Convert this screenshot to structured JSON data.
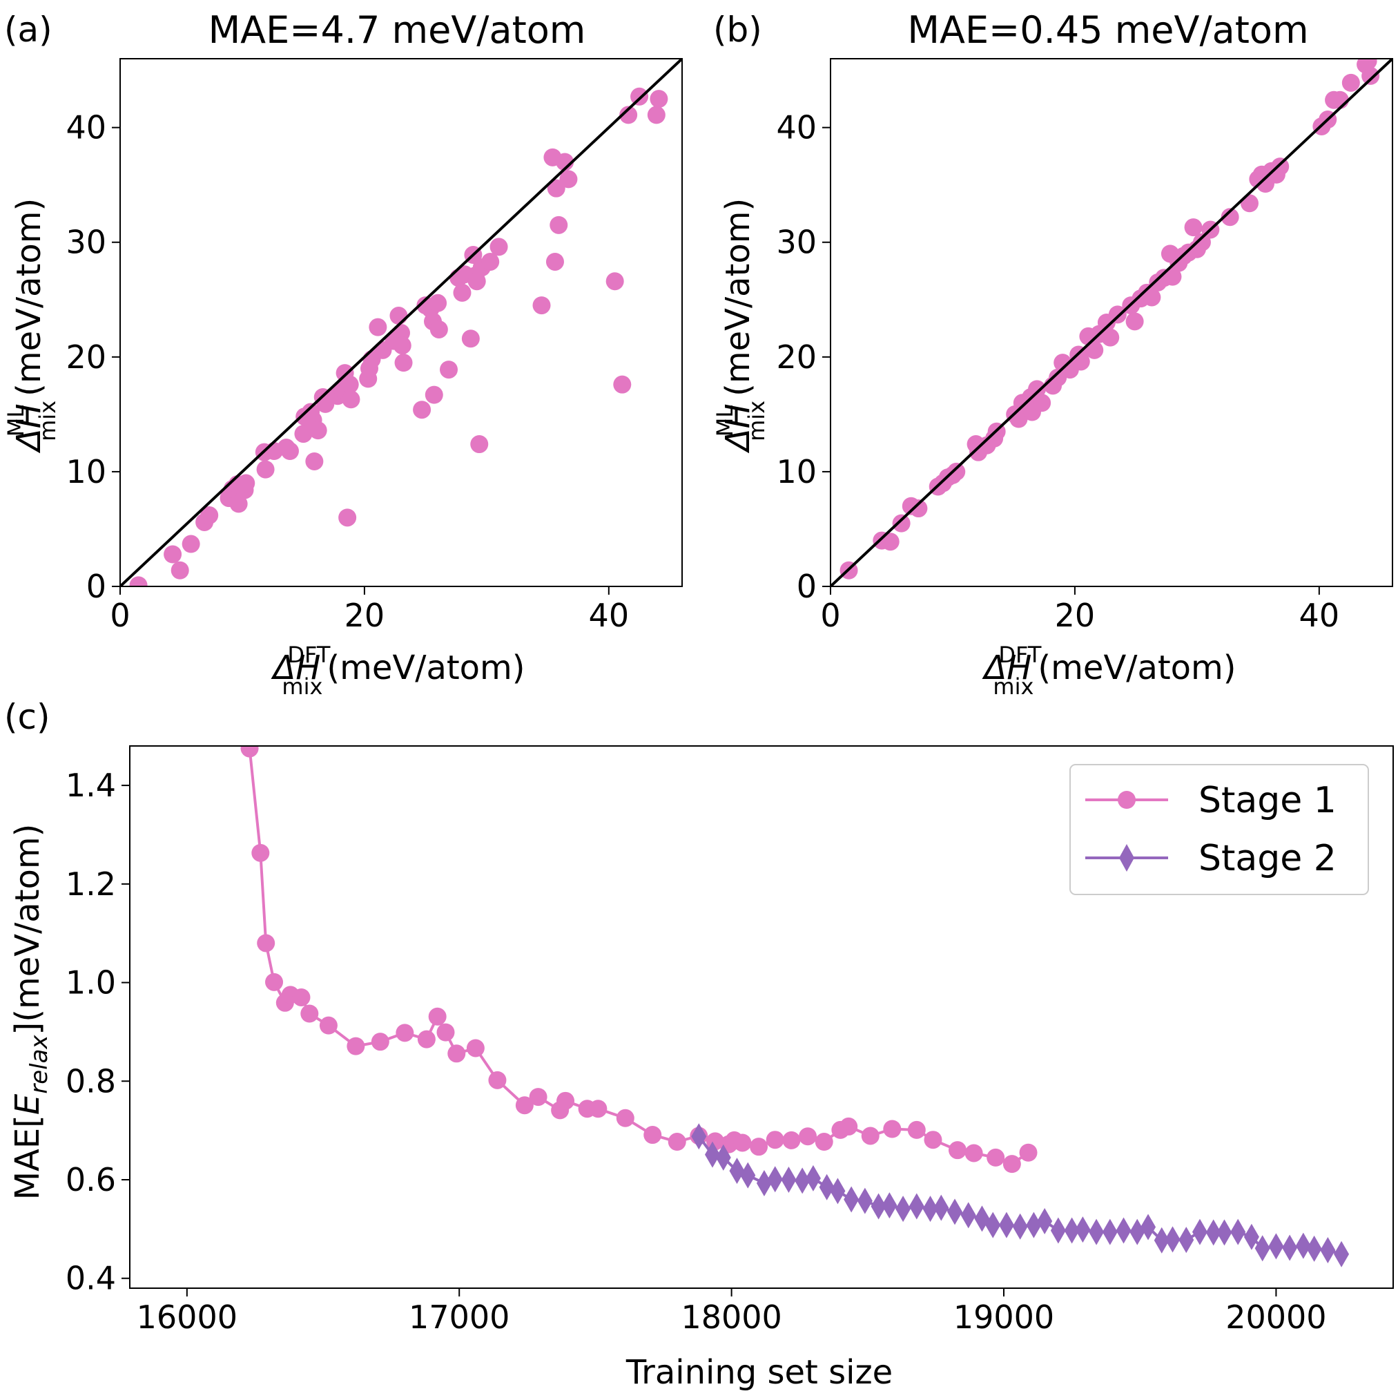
{
  "colors": {
    "stage1": "#e377c2",
    "stage2": "#9467bd",
    "scatter": "#e377c2",
    "diagonal": "#000000",
    "axes": "#000000"
  },
  "chart_data": [
    {
      "panel": "(a)",
      "type": "scatter",
      "title": "MAE=4.7 meV/atom",
      "xlabel": {
        "base": "ΔH",
        "sup": "DFT",
        "sub": "mix",
        "unit": "(meV/atom)"
      },
      "ylabel": {
        "base": "ΔH",
        "sup": "ML",
        "sub": "mix",
        "unit": "(meV/atom)"
      },
      "xlim": [
        0,
        46
      ],
      "ylim": [
        0,
        46
      ],
      "xticks": [
        0,
        20,
        40
      ],
      "yticks": [
        0,
        10,
        20,
        30,
        40
      ],
      "reference_line": "y = x",
      "points": [
        [
          1.5,
          0.1
        ],
        [
          4.3,
          2.8
        ],
        [
          4.9,
          1.4
        ],
        [
          5.8,
          3.7
        ],
        [
          6.9,
          5.6
        ],
        [
          7.3,
          6.2
        ],
        [
          8.9,
          7.7
        ],
        [
          9.2,
          8.5
        ],
        [
          9.6,
          8.9
        ],
        [
          9.7,
          7.2
        ],
        [
          10.2,
          8.4
        ],
        [
          10.3,
          9.0
        ],
        [
          11.8,
          11.7
        ],
        [
          11.9,
          10.2
        ],
        [
          12.6,
          11.8
        ],
        [
          13.6,
          12.1
        ],
        [
          13.9,
          11.8
        ],
        [
          15.0,
          13.3
        ],
        [
          15.1,
          14.8
        ],
        [
          15.6,
          15.2
        ],
        [
          15.8,
          14.5
        ],
        [
          15.9,
          10.9
        ],
        [
          16.2,
          13.6
        ],
        [
          16.6,
          16.5
        ],
        [
          16.8,
          15.9
        ],
        [
          17.8,
          16.6
        ],
        [
          18.2,
          17.2
        ],
        [
          18.4,
          18.6
        ],
        [
          18.6,
          6.0
        ],
        [
          18.8,
          17.6
        ],
        [
          18.9,
          16.3
        ],
        [
          20.3,
          18.1
        ],
        [
          20.4,
          19.0
        ],
        [
          20.6,
          19.8
        ],
        [
          21.1,
          22.6
        ],
        [
          21.5,
          20.6
        ],
        [
          22.4,
          21.4
        ],
        [
          22.8,
          23.6
        ],
        [
          23.0,
          22.1
        ],
        [
          23.1,
          21.0
        ],
        [
          23.2,
          19.5
        ],
        [
          24.7,
          15.4
        ],
        [
          25.0,
          24.5
        ],
        [
          25.4,
          24.2
        ],
        [
          25.6,
          23.1
        ],
        [
          25.7,
          16.7
        ],
        [
          26.0,
          24.7
        ],
        [
          26.1,
          22.4
        ],
        [
          26.9,
          18.9
        ],
        [
          27.7,
          26.9
        ],
        [
          28.0,
          25.6
        ],
        [
          28.2,
          27.2
        ],
        [
          28.7,
          21.6
        ],
        [
          28.9,
          28.9
        ],
        [
          29.1,
          27.1
        ],
        [
          29.2,
          26.6
        ],
        [
          29.4,
          12.4
        ],
        [
          29.6,
          27.8
        ],
        [
          30.3,
          28.3
        ],
        [
          31.0,
          29.6
        ],
        [
          34.5,
          24.5
        ],
        [
          35.4,
          37.4
        ],
        [
          35.6,
          28.3
        ],
        [
          35.7,
          34.7
        ],
        [
          35.9,
          31.5
        ],
        [
          36.4,
          37.0
        ],
        [
          36.7,
          35.5
        ],
        [
          40.5,
          26.6
        ],
        [
          41.1,
          17.6
        ],
        [
          41.6,
          41.1
        ],
        [
          42.5,
          42.7
        ],
        [
          43.9,
          41.1
        ],
        [
          44.1,
          42.5
        ]
      ]
    },
    {
      "panel": "(b)",
      "type": "scatter",
      "title": "MAE=0.45 meV/atom",
      "xlabel": {
        "base": "ΔH",
        "sup": "DFT",
        "sub": "mix",
        "unit": "(meV/atom)"
      },
      "ylabel": {
        "base": "ΔH",
        "sup": "ML",
        "sub": "mix",
        "unit": "(meV/atom)"
      },
      "xlim": [
        0,
        46
      ],
      "ylim": [
        0,
        46
      ],
      "xticks": [
        0,
        20,
        40
      ],
      "yticks": [
        0,
        10,
        20,
        30,
        40
      ],
      "reference_line": "y = x",
      "points": [
        [
          1.5,
          1.4
        ],
        [
          4.2,
          4.0
        ],
        [
          4.9,
          3.9
        ],
        [
          5.8,
          5.5
        ],
        [
          6.6,
          7.0
        ],
        [
          7.2,
          6.8
        ],
        [
          8.8,
          8.7
        ],
        [
          9.2,
          9.0
        ],
        [
          9.6,
          9.5
        ],
        [
          10.0,
          9.7
        ],
        [
          10.3,
          10.0
        ],
        [
          11.9,
          12.4
        ],
        [
          12.1,
          11.7
        ],
        [
          12.8,
          12.3
        ],
        [
          13.4,
          12.9
        ],
        [
          13.6,
          13.5
        ],
        [
          15.1,
          15.0
        ],
        [
          15.4,
          14.6
        ],
        [
          15.7,
          16.0
        ],
        [
          16.0,
          15.5
        ],
        [
          16.4,
          16.5
        ],
        [
          16.5,
          15.2
        ],
        [
          16.9,
          17.2
        ],
        [
          17.3,
          16.0
        ],
        [
          18.2,
          17.5
        ],
        [
          18.6,
          18.2
        ],
        [
          19.0,
          19.5
        ],
        [
          19.6,
          18.9
        ],
        [
          20.3,
          20.2
        ],
        [
          20.5,
          19.6
        ],
        [
          21.1,
          21.8
        ],
        [
          21.6,
          20.6
        ],
        [
          22.0,
          22.0
        ],
        [
          22.6,
          23.0
        ],
        [
          22.9,
          21.7
        ],
        [
          23.5,
          23.7
        ],
        [
          24.6,
          24.5
        ],
        [
          24.9,
          23.1
        ],
        [
          25.4,
          25.1
        ],
        [
          25.9,
          25.6
        ],
        [
          26.3,
          25.2
        ],
        [
          26.8,
          26.5
        ],
        [
          27.3,
          26.9
        ],
        [
          27.8,
          29.0
        ],
        [
          28.0,
          27.0
        ],
        [
          28.5,
          28.2
        ],
        [
          28.9,
          28.8
        ],
        [
          29.3,
          29.1
        ],
        [
          29.7,
          31.3
        ],
        [
          30.0,
          29.4
        ],
        [
          30.4,
          30.0
        ],
        [
          31.1,
          31.1
        ],
        [
          32.7,
          32.2
        ],
        [
          34.3,
          33.4
        ],
        [
          35.0,
          35.5
        ],
        [
          35.3,
          35.9
        ],
        [
          35.6,
          35.1
        ],
        [
          36.1,
          36.2
        ],
        [
          36.5,
          35.9
        ],
        [
          36.8,
          36.6
        ],
        [
          40.2,
          40.1
        ],
        [
          40.7,
          40.7
        ],
        [
          41.2,
          42.4
        ],
        [
          41.7,
          42.4
        ],
        [
          42.6,
          43.9
        ],
        [
          43.8,
          45.5
        ],
        [
          44.2,
          44.5
        ],
        [
          44.0,
          45.8
        ]
      ]
    },
    {
      "panel": "(c)",
      "type": "line",
      "title": "",
      "xlabel": "Training set size",
      "ylabel": {
        "prefix": "MAE[",
        "base": "E",
        "sub": "relax",
        "suffix": "](meV/atom)"
      },
      "xlim": [
        15790,
        20430
      ],
      "ylim": [
        0.38,
        1.48
      ],
      "xticks": [
        16000,
        17000,
        18000,
        19000,
        20000
      ],
      "yticks": [
        0.4,
        0.6,
        0.8,
        1.0,
        1.2,
        1.4
      ],
      "ytick_labels": [
        "0.4",
        "0.6",
        "0.8",
        "1.0",
        "1.2",
        "1.4"
      ],
      "legend_location": "top-right",
      "series": [
        {
          "name": "Stage 1",
          "marker": "circle",
          "x": [
            16230,
            16270,
            16290,
            16320,
            16360,
            16380,
            16420,
            16450,
            16520,
            16620,
            16710,
            16800,
            16880,
            16920,
            16950,
            16990,
            17060,
            17140,
            17240,
            17290,
            17370,
            17390,
            17470,
            17510,
            17610,
            17710,
            17800,
            17880,
            17940,
            17990,
            18010,
            18040,
            18100,
            18160,
            18220,
            18280,
            18340,
            18400,
            18430,
            18510,
            18590,
            18680,
            18740,
            18830,
            18890,
            18970,
            19030,
            19090
          ],
          "y": [
            1.475,
            1.263,
            1.08,
            1.001,
            0.959,
            0.975,
            0.97,
            0.937,
            0.913,
            0.871,
            0.88,
            0.898,
            0.885,
            0.931,
            0.899,
            0.856,
            0.867,
            0.802,
            0.751,
            0.768,
            0.741,
            0.76,
            0.744,
            0.744,
            0.725,
            0.691,
            0.677,
            0.689,
            0.678,
            0.672,
            0.68,
            0.675,
            0.667,
            0.681,
            0.68,
            0.688,
            0.677,
            0.701,
            0.708,
            0.689,
            0.703,
            0.701,
            0.681,
            0.66,
            0.654,
            0.645,
            0.632,
            0.655
          ]
        },
        {
          "name": "Stage 2",
          "marker": "diamond",
          "x": [
            17880,
            17930,
            17970,
            18020,
            18060,
            18120,
            18160,
            18210,
            18260,
            18300,
            18350,
            18390,
            18440,
            18490,
            18540,
            18580,
            18630,
            18680,
            18730,
            18770,
            18820,
            18870,
            18920,
            18960,
            19010,
            19060,
            19110,
            19150,
            19200,
            19250,
            19290,
            19340,
            19390,
            19440,
            19490,
            19530,
            19580,
            19620,
            19670,
            19720,
            19770,
            19810,
            19860,
            19910,
            19950,
            20000,
            20050,
            20100,
            20140,
            20190,
            20240
          ],
          "y": [
            0.688,
            0.651,
            0.645,
            0.618,
            0.609,
            0.593,
            0.601,
            0.6,
            0.598,
            0.603,
            0.585,
            0.577,
            0.56,
            0.557,
            0.546,
            0.548,
            0.541,
            0.546,
            0.541,
            0.543,
            0.535,
            0.528,
            0.521,
            0.508,
            0.508,
            0.505,
            0.508,
            0.516,
            0.497,
            0.497,
            0.499,
            0.494,
            0.494,
            0.497,
            0.494,
            0.504,
            0.477,
            0.479,
            0.478,
            0.494,
            0.493,
            0.493,
            0.494,
            0.484,
            0.461,
            0.465,
            0.462,
            0.466,
            0.46,
            0.457,
            0.449
          ]
        }
      ]
    }
  ]
}
